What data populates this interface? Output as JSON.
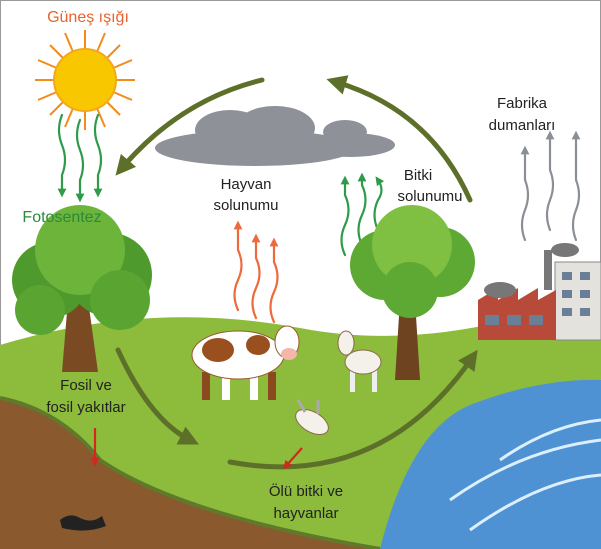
{
  "labels": {
    "sunlight": "Güneş ışığı",
    "photosynthesis": "Fotosentez",
    "animal_respiration": [
      "Hayvan",
      "solunumu"
    ],
    "plant_respiration": [
      "Bitki",
      "solunumu"
    ],
    "factory_smoke": [
      "Fabrika",
      "dumanları"
    ],
    "fossil_fuels": [
      "Fosil ve",
      "fosil yakıtlar"
    ],
    "dead_matter": [
      "Ölü bitki ve",
      "hayvanlar"
    ]
  }
}
